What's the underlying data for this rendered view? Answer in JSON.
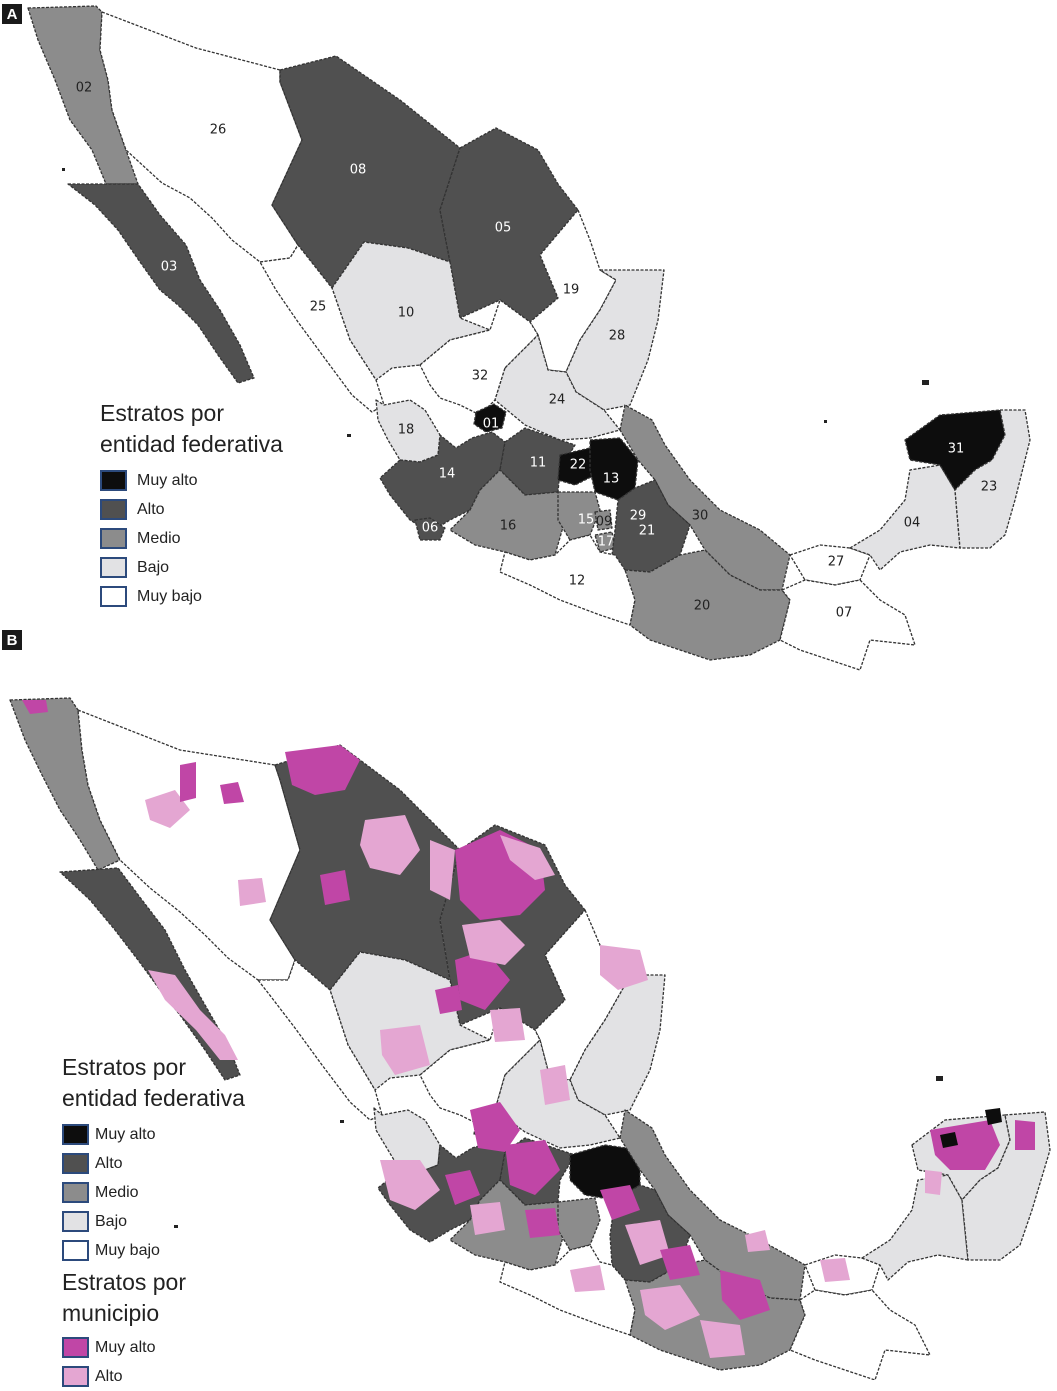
{
  "panels": [
    {
      "tag": "A"
    },
    {
      "tag": "B"
    }
  ],
  "colors": {
    "muy_alto": "#0d0d0d",
    "alto": "#505050",
    "medio": "#8c8c8c",
    "bajo": "#e2e2e4",
    "muy_bajo": "#ffffff",
    "mun_muy_alto": "#c046a6",
    "mun_alto": "#e4a6d2"
  },
  "legend_a": {
    "title": "Estratos por\nentidad federativa",
    "items": [
      {
        "label": "Muy  alto",
        "color": "#0d0d0d"
      },
      {
        "label": "Alto",
        "color": "#505050"
      },
      {
        "label": "Medio",
        "color": "#8c8c8c"
      },
      {
        "label": "Bajo",
        "color": "#e2e2e4"
      },
      {
        "label": "Muy bajo",
        "color": "#ffffff"
      }
    ]
  },
  "legend_b": {
    "title_state": "Estratos por\nentidad federativa",
    "state_items": [
      {
        "label": "Muy alto",
        "color": "#0d0d0d"
      },
      {
        "label": "Alto",
        "color": "#505050"
      },
      {
        "label": "Medio",
        "color": "#8c8c8c"
      },
      {
        "label": "Bajo",
        "color": "#e2e2e4"
      },
      {
        "label": "Muy bajo",
        "color": "#ffffff"
      }
    ],
    "title_mun": "Estratos por\nmunicipio",
    "mun_items": [
      {
        "label": "Muy alto",
        "color": "#c046a6"
      },
      {
        "label": "Alto",
        "color": "#e4a6d2"
      }
    ]
  },
  "state_codes": [
    "01",
    "02",
    "03",
    "04",
    "05",
    "06",
    "07",
    "08",
    "09",
    "10",
    "11",
    "12",
    "13",
    "14",
    "15",
    "16",
    "17",
    "18",
    "19",
    "20",
    "21",
    "22",
    "23",
    "24",
    "25",
    "26",
    "27",
    "28",
    "29",
    "30",
    "31",
    "32"
  ]
}
